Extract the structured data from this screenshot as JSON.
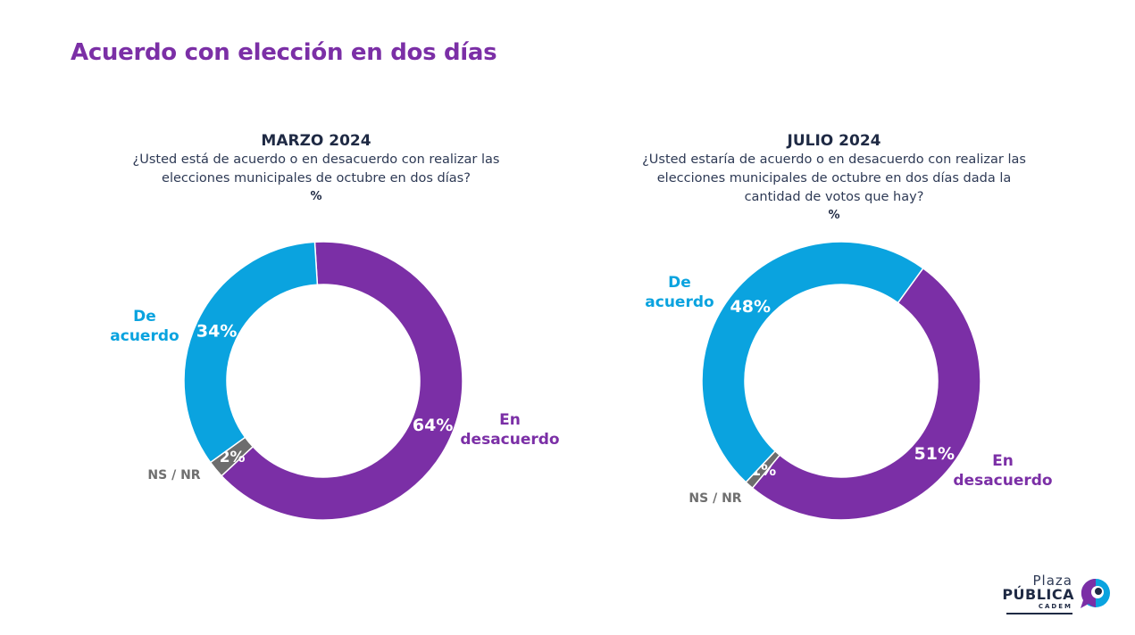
{
  "page": {
    "title": "Acuerdo con elección en dos días"
  },
  "panels": [
    {
      "period": "MARZO 2024",
      "question": "¿Usted está de acuerdo o en desacuerdo con realizar las elecciones municipales de octubre en dos días?",
      "unit": "%"
    },
    {
      "period": "JULIO 2024",
      "question": "¿Usted estaría de acuerdo o en desacuerdo con realizar las elecciones municipales de octubre en dos días dada la cantidad de votos que hay?",
      "unit": "%"
    }
  ],
  "colors": {
    "de_acuerdo": "#0aa3df",
    "en_desacuerdo": "#7b2fa6",
    "ns_nr": "#6d6d6d",
    "title": "#7b2fa6"
  },
  "chart_data": [
    {
      "type": "pie",
      "title": "MARZO 2024",
      "slices": [
        {
          "label": "En desacuerdo",
          "value": 64,
          "value_label": "64%"
        },
        {
          "label": "NS / NR",
          "value": 2,
          "value_label": "2%"
        },
        {
          "label": "De acuerdo",
          "value": 34,
          "value_label": "34%"
        }
      ]
    },
    {
      "type": "pie",
      "title": "JULIO 2024",
      "slices": [
        {
          "label": "En desacuerdo",
          "value": 51,
          "value_label": "51%"
        },
        {
          "label": "NS / NR",
          "value": 1,
          "value_label": "1%"
        },
        {
          "label": "De acuerdo",
          "value": 48,
          "value_label": "48%"
        }
      ]
    }
  ],
  "category_labels": {
    "de_acuerdo_line1": "De",
    "de_acuerdo_line2": "acuerdo",
    "en_desacuerdo_line1": "En",
    "en_desacuerdo_line2": "desacuerdo",
    "ns_nr": "NS / NR"
  },
  "logo": {
    "line1": "Plaza",
    "line2": "PÚBLICA",
    "line3": "CADEM"
  }
}
